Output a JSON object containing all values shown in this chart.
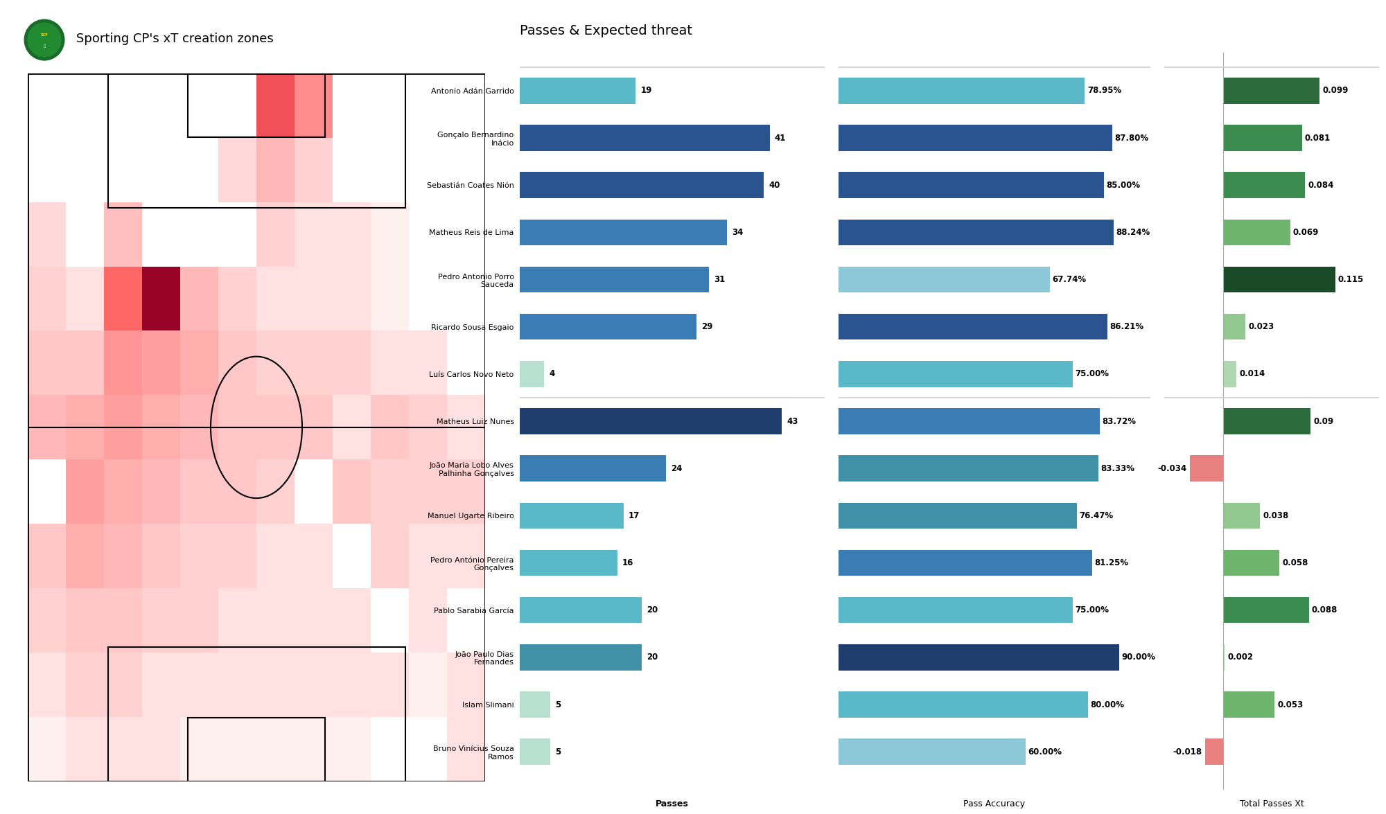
{
  "title_left": "Sporting CP's xT creation zones",
  "title_right": "Passes & Expected threat",
  "players": [
    {
      "name": "Antonio Adán Garrido",
      "passes": 19,
      "accuracy": 78.95,
      "xt": 0.099,
      "group": 1
    },
    {
      "name": "Gonçalo Bernardino\nInácio",
      "passes": 41,
      "accuracy": 87.8,
      "xt": 0.081,
      "group": 1
    },
    {
      "name": "Sebastián Coates Nión",
      "passes": 40,
      "accuracy": 85.0,
      "xt": 0.084,
      "group": 1
    },
    {
      "name": "Matheus Reis de Lima",
      "passes": 34,
      "accuracy": 88.24,
      "xt": 0.069,
      "group": 1
    },
    {
      "name": "Pedro Antonio Porro\nSauceda",
      "passes": 31,
      "accuracy": 67.74,
      "xt": 0.115,
      "group": 1
    },
    {
      "name": "Ricardo Sousa Esgaio",
      "passes": 29,
      "accuracy": 86.21,
      "xt": 0.023,
      "group": 1
    },
    {
      "name": "Luís Carlos Novo Neto",
      "passes": 4,
      "accuracy": 75.0,
      "xt": 0.014,
      "group": 1
    },
    {
      "name": "Matheus Luiz Nunes",
      "passes": 43,
      "accuracy": 83.72,
      "xt": 0.09,
      "group": 2
    },
    {
      "name": "João Maria Lobo Alves\nPalhinha Gonçalves",
      "passes": 24,
      "accuracy": 83.33,
      "xt": -0.034,
      "group": 2
    },
    {
      "name": "Manuel Ugarte Ribeiro",
      "passes": 17,
      "accuracy": 76.47,
      "xt": 0.038,
      "group": 2
    },
    {
      "name": "Pedro António Pereira\nGonçalves",
      "passes": 16,
      "accuracy": 81.25,
      "xt": 0.058,
      "group": 2
    },
    {
      "name": "Pablo Sarabia García",
      "passes": 20,
      "accuracy": 75.0,
      "xt": 0.088,
      "group": 2
    },
    {
      "name": "João Paulo Dias\nFernandes",
      "passes": 20,
      "accuracy": 90.0,
      "xt": 0.002,
      "group": 2
    },
    {
      "name": "Islam Slimani",
      "passes": 5,
      "accuracy": 80.0,
      "xt": 0.053,
      "group": 2
    },
    {
      "name": "Bruno Vinícius Souza\nRamos",
      "passes": 5,
      "accuracy": 60.0,
      "xt": -0.018,
      "group": 2
    }
  ],
  "pass_colors_map": [
    "#5BB8C8",
    "#2A5490",
    "#2A5490",
    "#3A7DB5",
    "#3A7DB5",
    "#3A7DB5",
    "#B8E0D0",
    "#1E3F6E",
    "#3A7DB5",
    "#5BB8C8",
    "#5BB8C8",
    "#5BB8C8",
    "#4090A8",
    "#B8E0D0",
    "#B8E0D0"
  ],
  "acc_colors_map": [
    "#5BB8C8",
    "#2A5490",
    "#2A5490",
    "#2A5490",
    "#8CC8D8",
    "#2A5490",
    "#5BB8C8",
    "#3A7DB5",
    "#4090A8",
    "#4090A8",
    "#3A7DB5",
    "#5BB8C8",
    "#1E3F6E",
    "#5BB8C8",
    "#8CC8D8"
  ],
  "xt_colors_map": [
    "#2D6B3C",
    "#3D8C4F",
    "#3D8C4F",
    "#6DB56D",
    "#1A4A28",
    "#90C890",
    "#B0D8B0",
    "#2D6B3C",
    "#E88080",
    "#90C890",
    "#6DB56D",
    "#3D8C4F",
    "#B0D8B0",
    "#6DB56D",
    "#E88080"
  ],
  "bg_color": "#FFFFFF",
  "heatmap_intensity": [
    [
      0,
      0,
      0,
      0,
      0,
      0,
      0.65,
      0.45,
      0,
      0,
      0,
      0
    ],
    [
      0,
      0,
      0,
      0,
      0,
      0.15,
      0.28,
      0.18,
      0,
      0,
      0,
      0
    ],
    [
      0.15,
      0,
      0.25,
      0,
      0,
      0,
      0.18,
      0.12,
      0.12,
      0.06,
      0,
      0
    ],
    [
      0.18,
      0.12,
      0.6,
      0.95,
      0.28,
      0.18,
      0.12,
      0.12,
      0.12,
      0.06,
      0,
      0
    ],
    [
      0.22,
      0.22,
      0.42,
      0.38,
      0.32,
      0.22,
      0.18,
      0.18,
      0.18,
      0.12,
      0.12,
      0
    ],
    [
      0.28,
      0.32,
      0.38,
      0.32,
      0.28,
      0.22,
      0.22,
      0.22,
      0.12,
      0.22,
      0.18,
      0.12
    ],
    [
      0,
      0.38,
      0.32,
      0.28,
      0.22,
      0.22,
      0.18,
      0,
      0.22,
      0.18,
      0.18,
      0.18
    ],
    [
      0.22,
      0.32,
      0.28,
      0.22,
      0.18,
      0.18,
      0.12,
      0.12,
      0,
      0.18,
      0.12,
      0.12
    ],
    [
      0.18,
      0.22,
      0.22,
      0.18,
      0.18,
      0.12,
      0.12,
      0.12,
      0.12,
      0,
      0.12,
      0
    ],
    [
      0.12,
      0.18,
      0.18,
      0.12,
      0.12,
      0.12,
      0.12,
      0.12,
      0.12,
      0.12,
      0.06,
      0.12
    ],
    [
      0.06,
      0.12,
      0.12,
      0.12,
      0.06,
      0.06,
      0.06,
      0.06,
      0.06,
      0,
      0,
      0.12
    ]
  ]
}
